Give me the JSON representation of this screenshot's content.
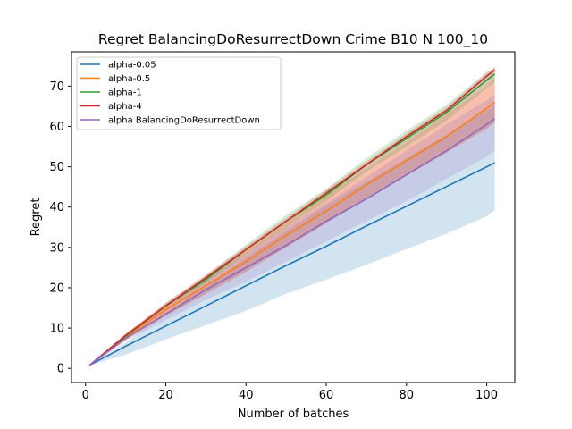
{
  "chart_data": {
    "type": "line",
    "title": "Regret BalancingDoResurrectDown Crime B10 N 100_10",
    "xlabel": "Number of batches",
    "ylabel": "Regret",
    "xlim": [
      -3.5,
      107
    ],
    "ylim": [
      -3.5,
      78.5
    ],
    "xticks": [
      0,
      20,
      40,
      60,
      80,
      100
    ],
    "yticks": [
      0,
      10,
      20,
      30,
      40,
      50,
      60,
      70
    ],
    "grid": false,
    "legend_position": "top-left",
    "x": [
      1,
      10,
      20,
      30,
      40,
      50,
      60,
      70,
      80,
      90,
      100,
      102
    ],
    "series": [
      {
        "name": "alpha-0.05",
        "color": "#1f77b4",
        "values": [
          0.8,
          5.5,
          10.5,
          15.5,
          20.5,
          25.5,
          30.3,
          35.3,
          40.2,
          45.1,
          50.0,
          51.0
        ],
        "band_low": [
          0.7,
          3.4,
          7.2,
          10.7,
          14.3,
          18.5,
          22.0,
          25.7,
          29.6,
          33.4,
          37.7,
          39.2
        ],
        "band_high": [
          0.9,
          6.4,
          13.6,
          20.5,
          27.5,
          34.0,
          40.4,
          46.3,
          52.1,
          58.0,
          64.0,
          65.2
        ]
      },
      {
        "name": "alpha-0.5",
        "color": "#ff7f0e",
        "values": [
          0.8,
          7.8,
          14.5,
          20.5,
          26.5,
          33.0,
          39.0,
          45.5,
          51.5,
          57.5,
          64.5,
          66.0
        ],
        "band_low": [
          0.7,
          7.0,
          13.0,
          18.5,
          24.0,
          30.0,
          36.0,
          42.0,
          47.8,
          53.5,
          59.5,
          61.0
        ],
        "band_high": [
          0.9,
          8.6,
          16.0,
          22.8,
          29.5,
          36.5,
          43.0,
          49.5,
          56.0,
          63.0,
          70.0,
          72.0
        ]
      },
      {
        "name": "alpha-1",
        "color": "#2ca02c",
        "values": [
          0.8,
          8.0,
          15.5,
          22.0,
          29.5,
          36.5,
          43.0,
          50.5,
          57.0,
          63.5,
          71.5,
          73.0
        ],
        "band_low": [
          0.7,
          7.6,
          14.8,
          21.0,
          28.3,
          35.0,
          41.5,
          48.8,
          55.0,
          61.5,
          69.5,
          71.0
        ],
        "band_high": [
          0.9,
          8.4,
          16.2,
          23.0,
          30.7,
          38.0,
          44.5,
          52.2,
          59.0,
          65.5,
          73.5,
          74.5
        ]
      },
      {
        "name": "alpha-4",
        "color": "#d62728",
        "values": [
          0.8,
          8.2,
          15.5,
          22.5,
          29.5,
          36.5,
          43.5,
          50.5,
          57.5,
          64.0,
          72.5,
          74.0
        ],
        "band_low": [
          0.7,
          7.0,
          13.0,
          18.5,
          24.0,
          30.0,
          36.0,
          42.0,
          47.8,
          53.5,
          59.5,
          61.0
        ],
        "band_high": [
          0.9,
          8.6,
          16.3,
          23.3,
          30.3,
          37.3,
          44.3,
          51.3,
          58.3,
          64.8,
          73.3,
          74.8
        ]
      },
      {
        "name": "alpha BalancingDoResurrectDown",
        "color": "#9467bd",
        "values": [
          0.8,
          7.5,
          13.5,
          19.5,
          25.0,
          30.5,
          36.5,
          42.0,
          48.0,
          54.0,
          60.5,
          62.0
        ],
        "band_low": [
          0.7,
          6.8,
          12.0,
          17.0,
          21.5,
          26.5,
          31.5,
          36.5,
          41.5,
          47.0,
          52.5,
          54.0
        ],
        "band_high": [
          0.9,
          8.2,
          15.0,
          21.8,
          28.5,
          35.0,
          41.0,
          47.5,
          54.0,
          60.5,
          66.5,
          68.0
        ]
      }
    ]
  }
}
